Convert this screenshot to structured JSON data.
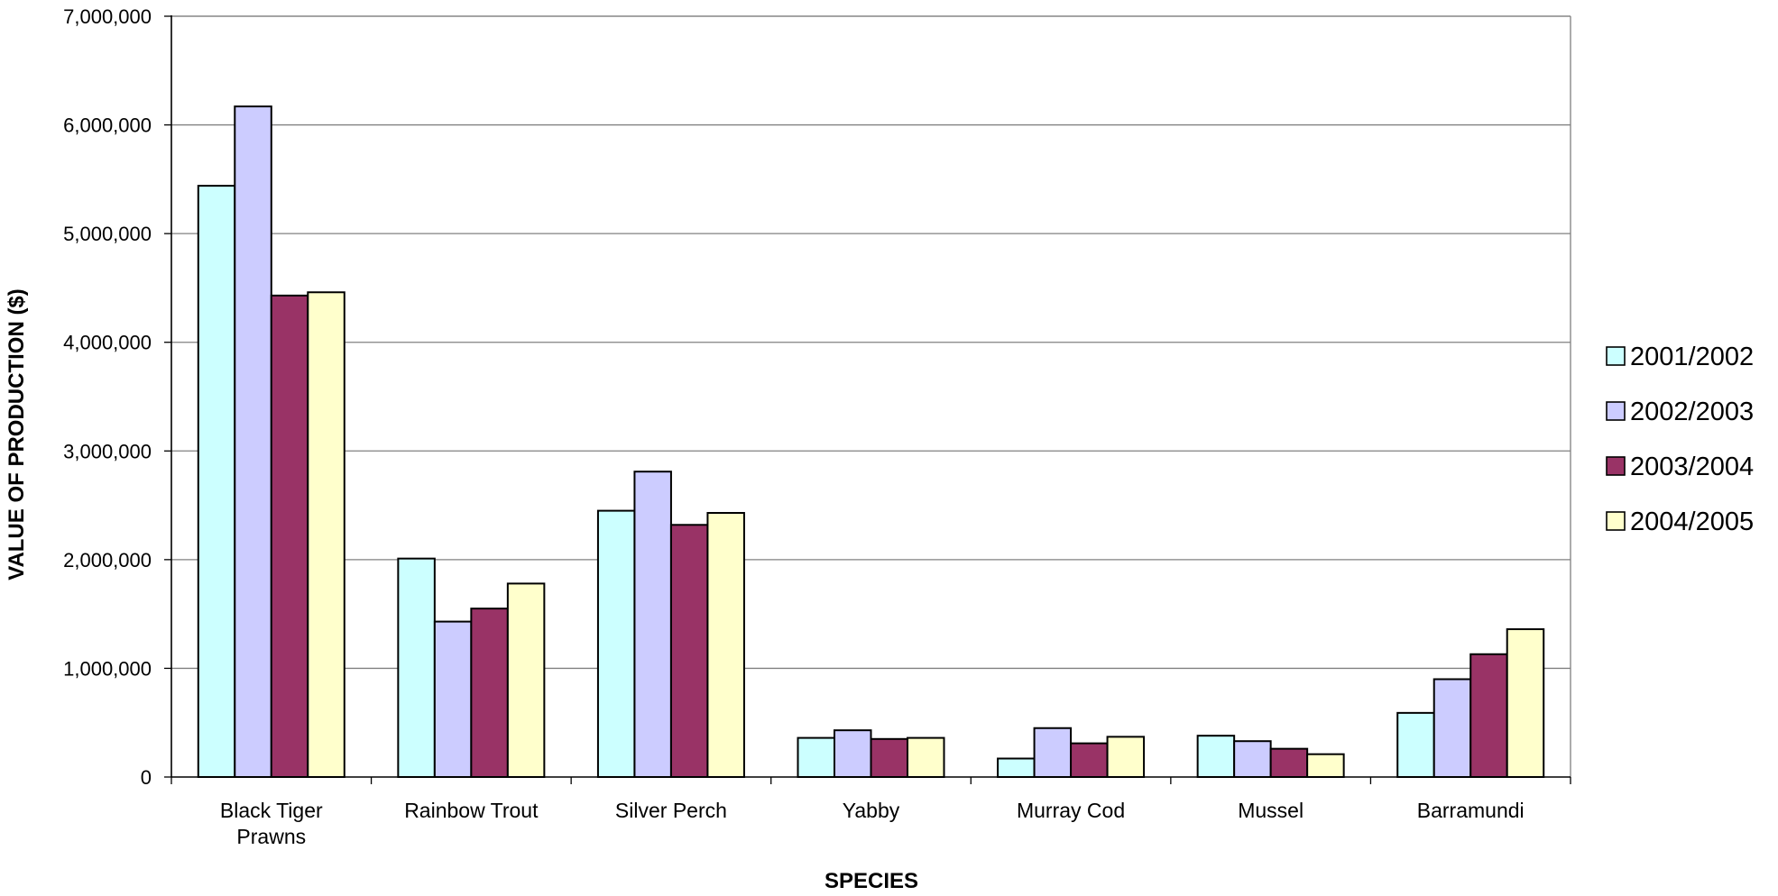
{
  "chart_data": {
    "type": "bar",
    "title": "",
    "xlabel": "SPECIES",
    "ylabel": "VALUE OF PRODUCTION ($)",
    "ylim": [
      0,
      7000000
    ],
    "yticks": [
      0,
      1000000,
      2000000,
      3000000,
      4000000,
      5000000,
      6000000,
      7000000
    ],
    "ytick_labels": [
      "0",
      "1,000,000",
      "2,000,000",
      "3,000,000",
      "4,000,000",
      "5,000,000",
      "6,000,000",
      "7,000,000"
    ],
    "grid": true,
    "legend_position": "right",
    "categories": [
      [
        "Black Tiger",
        "Prawns"
      ],
      [
        "Rainbow Trout"
      ],
      [
        "Silver Perch"
      ],
      [
        "Yabby"
      ],
      [
        "Murray Cod"
      ],
      [
        "Mussel"
      ],
      [
        "Barramundi"
      ]
    ],
    "series": [
      {
        "name": "2001/2002",
        "color": "#ccffff",
        "values": [
          5440000,
          2010000,
          2450000,
          360000,
          170000,
          380000,
          590000
        ]
      },
      {
        "name": "2002/2003",
        "color": "#ccccff",
        "values": [
          6170000,
          1430000,
          2810000,
          430000,
          450000,
          330000,
          900000
        ]
      },
      {
        "name": "2003/2004",
        "color": "#993366",
        "values": [
          4430000,
          1550000,
          2320000,
          350000,
          310000,
          260000,
          1130000
        ]
      },
      {
        "name": "2004/2005",
        "color": "#ffffcc",
        "values": [
          4460000,
          1780000,
          2430000,
          360000,
          370000,
          210000,
          1360000
        ]
      }
    ]
  }
}
